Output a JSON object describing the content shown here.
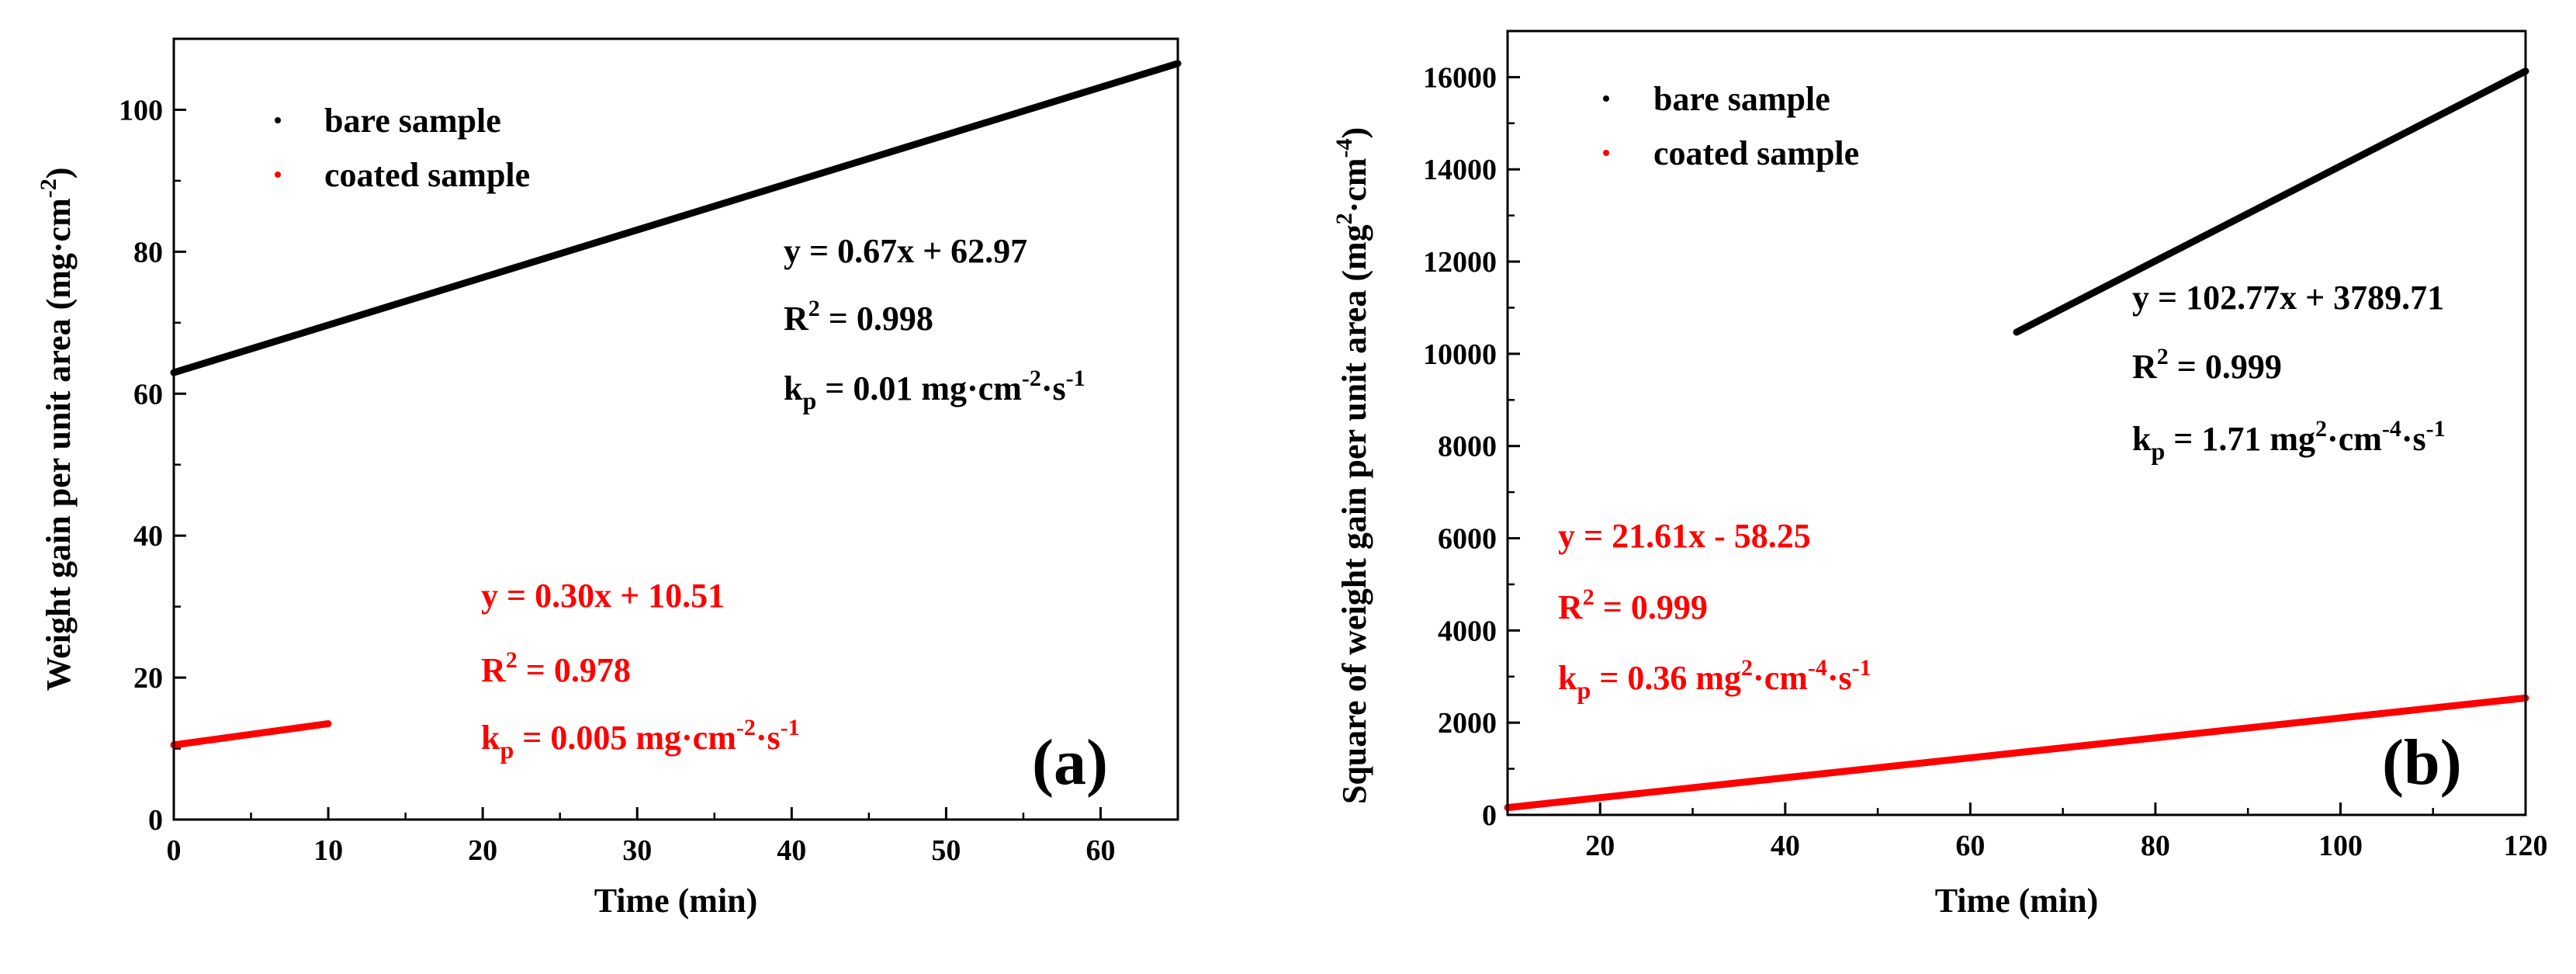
{
  "colors": {
    "bare": "#000000",
    "coated": "#ff0000"
  },
  "chart_data": [
    {
      "type": "line",
      "panel_label": "(a)",
      "xlabel": "Time (min)",
      "ylabel": "Weight gain per unit area (mg·cm",
      "ylabel_sup": "-2",
      "ylabel_end": ")",
      "xlim": [
        0,
        65
      ],
      "ylim": [
        0,
        110
      ],
      "xticks": [
        0,
        10,
        20,
        30,
        40,
        50,
        60
      ],
      "yticks": [
        0,
        20,
        40,
        60,
        80,
        100
      ],
      "xtick_labels": [
        "0",
        "10",
        "20",
        "30",
        "40",
        "50",
        "60"
      ],
      "ytick_labels": [
        "0",
        "20",
        "40",
        "60",
        "80",
        "100"
      ],
      "legend_position": "top-left",
      "series": [
        {
          "name": "bare sample",
          "color": "#000000",
          "x": [
            0,
            65
          ],
          "y": [
            62.97,
            106.52
          ]
        },
        {
          "name": "coated sample",
          "color": "#ff0000",
          "x": [
            0,
            10
          ],
          "y": [
            10.51,
            13.51
          ]
        }
      ],
      "fits": [
        {
          "series": "bare sample",
          "color": "#000000",
          "equation": "y = 0.67x + 62.97",
          "r2_label": "R",
          "r2_sup": "2",
          "r2_value": " = 0.998",
          "kp_k": "k",
          "kp_sub": "p",
          "kp_mid": " = 0.01 mg·cm",
          "kp_sup1": "-2",
          "kp_mid2": "·s",
          "kp_sup2": "-1",
          "kp_end": ""
        },
        {
          "series": "coated sample",
          "color": "#ff0000",
          "equation": "y = 0.30x + 10.51",
          "r2_label": "R",
          "r2_sup": "2",
          "r2_value": " = 0.978",
          "kp_k": "k",
          "kp_sub": "p",
          "kp_mid": " = 0.005 mg·cm",
          "kp_sup1": "-2",
          "kp_mid2": "·s",
          "kp_sup2": "-1",
          "kp_end": ""
        }
      ]
    },
    {
      "type": "line",
      "panel_label": "(b)",
      "xlabel": "Time (min)",
      "ylabel": "Square of weight gain per unit area (mg",
      "ylabel_sup": "2",
      "ylabel_mid": "·cm",
      "ylabel_sup2": "-4",
      "ylabel_end": ")",
      "xlim": [
        10,
        120
      ],
      "ylim": [
        0,
        17000
      ],
      "xticks": [
        20,
        40,
        60,
        80,
        100,
        120
      ],
      "yticks": [
        0,
        2000,
        4000,
        6000,
        8000,
        10000,
        12000,
        14000,
        16000
      ],
      "xtick_labels": [
        "20",
        "40",
        "60",
        "80",
        "100",
        "120"
      ],
      "ytick_labels": [
        "0",
        "2000",
        "4000",
        "6000",
        "8000",
        "10000",
        "12000",
        "14000",
        "16000"
      ],
      "legend_position": "top-left",
      "series": [
        {
          "name": "bare sample",
          "color": "#000000",
          "x": [
            65,
            120
          ],
          "y": [
            10470,
            16130
          ]
        },
        {
          "name": "coated sample",
          "color": "#ff0000",
          "x": [
            10,
            120
          ],
          "y": [
            158,
            2535
          ]
        }
      ],
      "fits": [
        {
          "series": "bare sample",
          "color": "#000000",
          "equation": "y = 102.77x + 3789.71",
          "r2_label": "R",
          "r2_sup": "2",
          "r2_value": " = 0.999",
          "kp_k": "k",
          "kp_sub": "p",
          "kp_mid": " = 1.71 mg",
          "kp_sup1": "2",
          "kp_mid2": "·cm",
          "kp_sup2": "-4",
          "kp_end": "·s",
          "kp_sup3": "-1"
        },
        {
          "series": "coated sample",
          "color": "#ff0000",
          "equation": "y = 21.61x - 58.25",
          "r2_label": "R",
          "r2_sup": "2",
          "r2_value": " = 0.999",
          "kp_k": "k",
          "kp_sub": "p",
          "kp_mid": " = 0.36 mg",
          "kp_sup1": "2",
          "kp_mid2": "·cm",
          "kp_sup2": "-4",
          "kp_end": "·s",
          "kp_sup3": "-1"
        }
      ]
    }
  ]
}
